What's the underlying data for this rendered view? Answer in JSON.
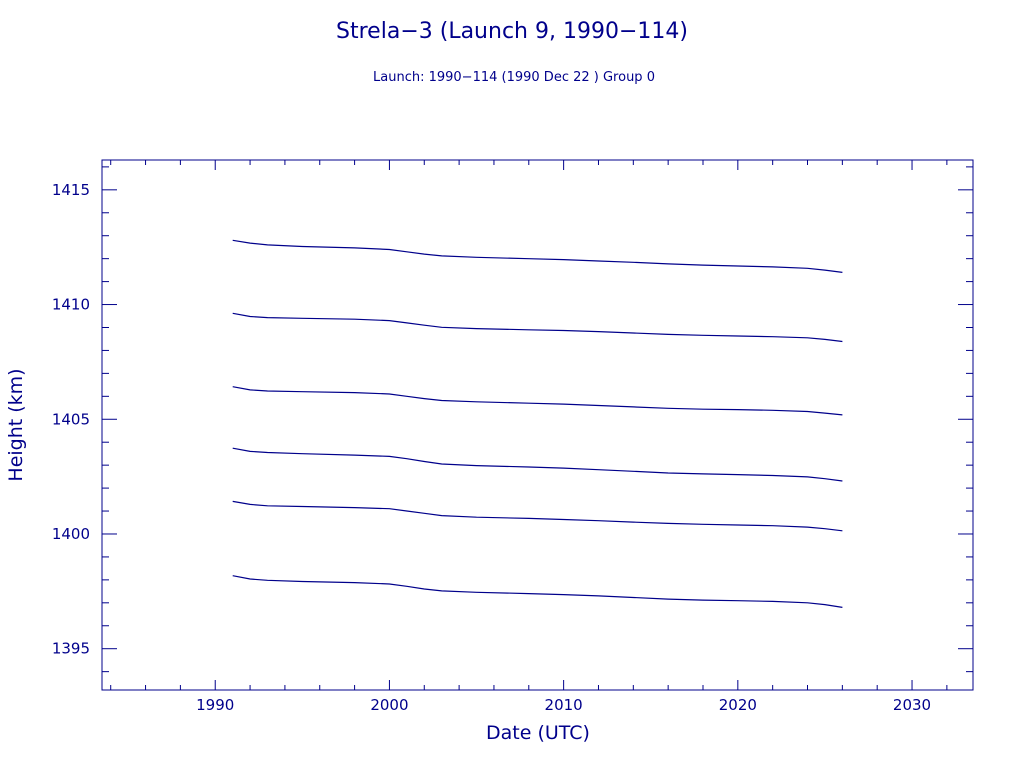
{
  "colors": {
    "ink": "#00008b",
    "background": "#ffffff"
  },
  "chart_data": {
    "type": "line",
    "title": "Strela−3 (Launch 9, 1990−114)",
    "subtitle": "Launch: 1990−114  (1990 Dec 22 )  Group 0",
    "xlabel": "Date (UTC)",
    "ylabel": "Height (km)",
    "xlim": [
      1983.5,
      2033.5
    ],
    "ylim": [
      1393.2,
      1416.3
    ],
    "xticks": [
      1990,
      2000,
      2010,
      2020,
      2030
    ],
    "xtick_labels": [
      "1990",
      "2000",
      "2010",
      "2020",
      "2030"
    ],
    "yticks": [
      1395,
      1400,
      1405,
      1410,
      1415
    ],
    "ytick_labels": [
      "1395",
      "1400",
      "1405",
      "1410",
      "1415"
    ],
    "x_minor_step": 2,
    "y_minor_step": 1,
    "grid": false,
    "legend": "none",
    "x": [
      1991.0,
      1992.0,
      1993.0,
      1995.0,
      1998.0,
      2000.0,
      2001.0,
      2002.0,
      2003.0,
      2005.0,
      2008.0,
      2010.0,
      2012.0,
      2014.0,
      2016.0,
      2018.0,
      2020.0,
      2022.0,
      2024.0,
      2025.0,
      2026.0
    ],
    "series": [
      {
        "values": [
          1412.8,
          1412.68,
          1412.6,
          1412.53,
          1412.47,
          1412.4,
          1412.3,
          1412.2,
          1412.12,
          1412.06,
          1412.0,
          1411.96,
          1411.9,
          1411.84,
          1411.77,
          1411.72,
          1411.68,
          1411.64,
          1411.58,
          1411.5,
          1411.4
        ]
      },
      {
        "values": [
          1409.62,
          1409.48,
          1409.43,
          1409.4,
          1409.36,
          1409.3,
          1409.2,
          1409.1,
          1409.01,
          1408.95,
          1408.9,
          1408.87,
          1408.82,
          1408.76,
          1408.7,
          1408.66,
          1408.63,
          1408.6,
          1408.55,
          1408.48,
          1408.39
        ]
      },
      {
        "values": [
          1406.42,
          1406.28,
          1406.23,
          1406.2,
          1406.16,
          1406.1,
          1406.0,
          1405.9,
          1405.82,
          1405.76,
          1405.7,
          1405.66,
          1405.6,
          1405.54,
          1405.48,
          1405.44,
          1405.42,
          1405.39,
          1405.34,
          1405.27,
          1405.19
        ]
      },
      {
        "values": [
          1403.74,
          1403.6,
          1403.55,
          1403.5,
          1403.44,
          1403.38,
          1403.28,
          1403.16,
          1403.05,
          1402.98,
          1402.92,
          1402.87,
          1402.8,
          1402.73,
          1402.66,
          1402.62,
          1402.59,
          1402.55,
          1402.49,
          1402.41,
          1402.31
        ]
      },
      {
        "values": [
          1401.42,
          1401.29,
          1401.23,
          1401.2,
          1401.15,
          1401.1,
          1401.0,
          1400.9,
          1400.8,
          1400.73,
          1400.68,
          1400.63,
          1400.58,
          1400.52,
          1400.46,
          1400.42,
          1400.39,
          1400.36,
          1400.3,
          1400.23,
          1400.14
        ]
      },
      {
        "values": [
          1398.18,
          1398.04,
          1397.98,
          1397.93,
          1397.88,
          1397.82,
          1397.72,
          1397.6,
          1397.52,
          1397.46,
          1397.4,
          1397.36,
          1397.3,
          1397.23,
          1397.16,
          1397.12,
          1397.09,
          1397.06,
          1397.0,
          1396.92,
          1396.8
        ]
      }
    ]
  }
}
